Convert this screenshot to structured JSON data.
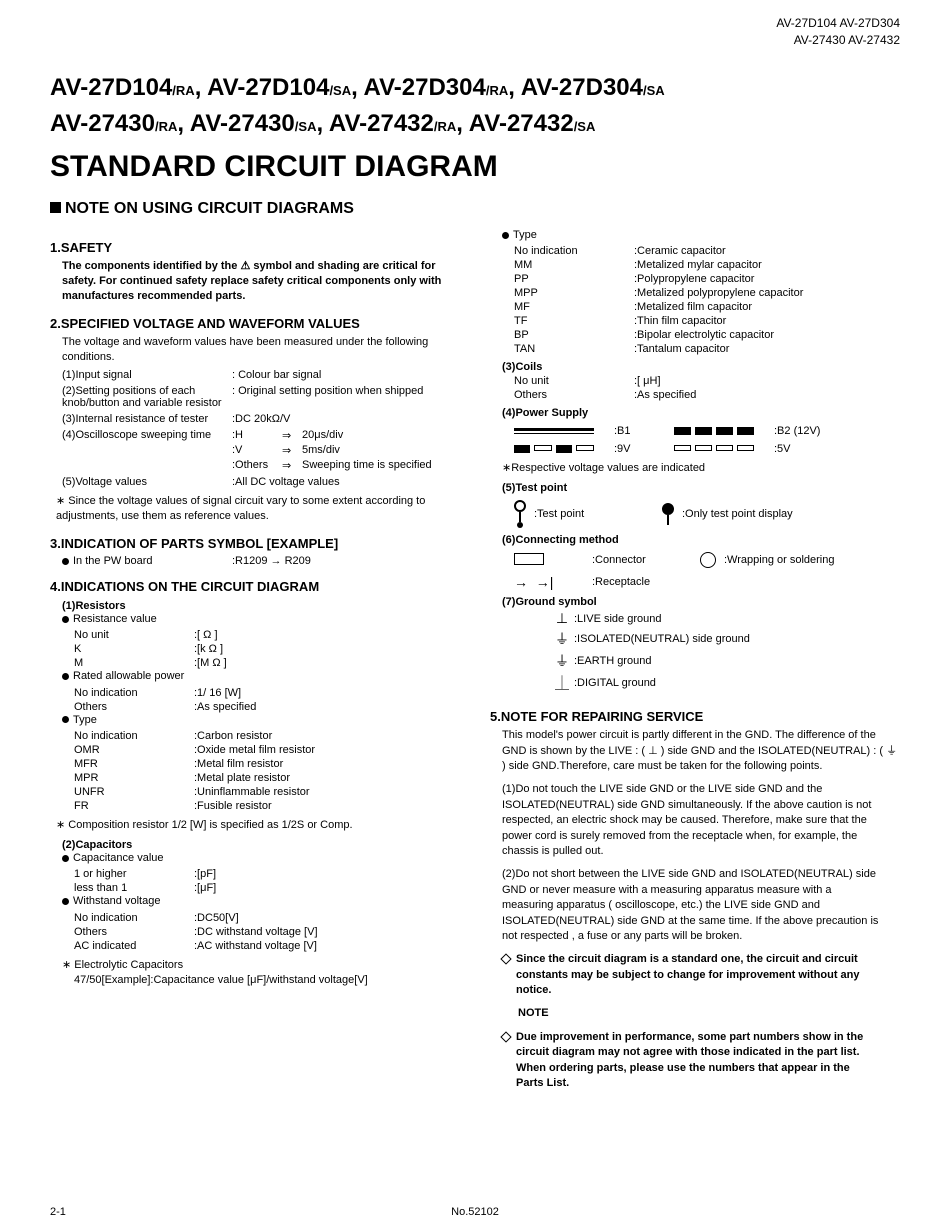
{
  "header_right_line1": "AV-27D104 AV-27D304",
  "header_right_line2": "AV-27430 AV-27432",
  "title_parts": [
    {
      "main": "AV-27D104",
      "suf": "/RA"
    },
    {
      "main": ", AV-27D104",
      "suf": "/SA"
    },
    {
      "main": ", AV-27D304",
      "suf": "/RA"
    },
    {
      "main": ", AV-27D304",
      "suf": "/SA"
    }
  ],
  "title_parts2": [
    {
      "main": "AV-27430",
      "suf": "/RA"
    },
    {
      "main": ", AV-27430",
      "suf": "/SA"
    },
    {
      "main": ", AV-27432",
      "suf": "/RA"
    },
    {
      "main": ", AV-27432",
      "suf": "/SA"
    }
  ],
  "main_title": "STANDARD CIRCUIT DIAGRAM",
  "note_head": "NOTE ON USING CIRCUIT DIAGRAMS",
  "s1_head": "1.SAFETY",
  "s1_body": "The components identified by the ⚠ symbol and shading are critical for safety. For continued safety replace safety critical components only with manufactures recommended parts.",
  "s2_head": "2.SPECIFIED VOLTAGE AND WAVEFORM VALUES",
  "s2_intro": "The voltage and waveform values have been measured under the following conditions.",
  "s2_r1_k": "(1)Input signal",
  "s2_r1_v": ": Colour bar signal",
  "s2_r2_k": "(2)Setting positions of each knob/button and variable resistor",
  "s2_r2_v": ": Original setting position when shipped",
  "s2_r3_k": "(3)Internal resistance of tester",
  "s2_r3_v": ":DC 20kΩ/V",
  "s2_r4_k": "(4)Oscilloscope sweeping time",
  "osc1_c1": ":H",
  "osc1_c2": "20μs/div",
  "osc2_c1": ":V",
  "osc2_c2": "5ms/div",
  "osc3_c1": ":Others",
  "osc3_c2": "Sweeping time is specified",
  "s2_r5_k": "(5)Voltage values",
  "s2_r5_v": ":All DC voltage values",
  "s2_note": "∗ Since the voltage values of signal circuit vary to some extent according to adjustments, use them as reference values.",
  "s3_head": "3.INDICATION OF PARTS SYMBOL [EXAMPLE]",
  "s3_body_pre": "In the PW board",
  "s3_body_post": ":R1209 → R209",
  "s4_head": "4.INDICATIONS ON THE CIRCUIT DIAGRAM",
  "s4_1": "(1)Resistors",
  "s4_rv": "Resistance value",
  "rv_r1_k": "No unit",
  "rv_r1_v": ":[ Ω ]",
  "rv_r2_k": "K",
  "rv_r2_v": ":[k Ω ]",
  "rv_r3_k": "M",
  "rv_r3_v": ":[M Ω ]",
  "s4_rap": "Rated allowable power",
  "rap_r1_k": "No indication",
  "rap_r1_v": ":1/ 16  [W]",
  "rap_r2_k": "Others",
  "rap_r2_v": ":As specified",
  "s4_type": "Type",
  "rt_r1_k": "No indication",
  "rt_r1_v": ":Carbon resistor",
  "rt_r2_k": "OMR",
  "rt_r2_v": ":Oxide metal film resistor",
  "rt_r3_k": "MFR",
  "rt_r3_v": ":Metal film resistor",
  "rt_r4_k": "MPR",
  "rt_r4_v": ":Metal plate resistor",
  "rt_r5_k": "UNFR",
  "rt_r5_v": ":Uninflammable resistor",
  "rt_r6_k": "FR",
  "rt_r6_v": ":Fusible resistor",
  "s4_comp_note": "∗ Composition resistor 1/2 [W] is specified as 1/2S or Comp.",
  "s4_2": "(2)Capacitors",
  "s4_cv": "Capacitance value",
  "cv_r1_k": "1 or higher",
  "cv_r1_v": ":[pF]",
  "cv_r2_k": "less than 1",
  "cv_r2_v": ":[μF]",
  "s4_wv": "Withstand voltage",
  "wv_r1_k": "No indication",
  "wv_r1_v": ":DC50[V]",
  "wv_r2_k": "Others",
  "wv_r2_v": ":DC withstand voltage [V]",
  "wv_r3_k": "AC indicated",
  "wv_r3_v": ":AC withstand voltage [V]",
  "s4_ec": "∗ Electrolytic Capacitors",
  "s4_ec2": "47/50[Example]:Capacitance value [μF]/withstand voltage[V]",
  "ct_r1_k": "No indication",
  "ct_r1_v": ":Ceramic capacitor",
  "ct_r2_k": "MM",
  "ct_r2_v": ":Metalized mylar capacitor",
  "ct_r3_k": "PP",
  "ct_r3_v": ":Polypropylene capacitor",
  "ct_r4_k": "MPP",
  "ct_r4_v": ":Metalized polypropylene capacitor",
  "ct_r5_k": "MF",
  "ct_r5_v": ":Metalized film capacitor",
  "ct_r6_k": "TF",
  "ct_r6_v": ":Thin film capacitor",
  "ct_r7_k": "BP",
  "ct_r7_v": ":Bipolar electrolytic capacitor",
  "ct_r8_k": "TAN",
  "ct_r8_v": ":Tantalum capacitor",
  "s4_3": "(3)Coils",
  "co_r1_k": "No unit",
  "co_r1_v": ":[ μH]",
  "co_r2_k": "Others",
  "co_r2_v": ":As specified",
  "s4_4": "(4)Power Supply",
  "ps_b1": ":B1",
  "ps_b2": ":B2 (12V)",
  "ps_9v": ":9V",
  "ps_5v": ":5V",
  "ps_note": "∗Respective voltage values are indicated",
  "s4_5": "(5)Test point",
  "tp_1": ":Test point",
  "tp_2": ":Only test point display",
  "s4_6": "(6)Connecting method",
  "cm_1": ":Connector",
  "cm_2": ":Wrapping or soldering",
  "cm_3": ":Receptacle",
  "s4_7": "(7)Ground symbol",
  "gs_1": ":LIVE side ground",
  "gs_2": ":ISOLATED(NEUTRAL) side ground",
  "gs_3": ":EARTH ground",
  "gs_4": ":DIGITAL ground",
  "s5_head": "5.NOTE FOR REPAIRING SERVICE",
  "s5_para": "This model's power circuit is partly different in the GND. The difference of the GND is shown by the LIVE : ( ⊥ ) side GND and the ISOLATED(NEUTRAL) : ( ⏚ ) side GND.Therefore, care must be taken for the following points.",
  "s5_1": "(1)Do not touch the LIVE side GND or the LIVE side GND and the ISOLATED(NEUTRAL) side GND simultaneously. If the above caution is not respected, an electric shock may be caused. Therefore, make sure that the power cord is surely removed from the receptacle when, for example, the chassis is pulled out.",
  "s5_2": "(2)Do not short between the LIVE side GND and ISOLATED(NEUTRAL) side GND or never measure with a measuring apparatus measure with a measuring apparatus ( oscilloscope, etc.) the LIVE side GND and ISOLATED(NEUTRAL) side GND at the same time. If the above precaution is not respected , a fuse or any parts will be broken.",
  "d1": "Since the circuit diagram is a standard one, the circuit and circuit constants may be subject to change for improvement without any notice.",
  "note_label": "NOTE",
  "d2": "Due improvement in performance, some part numbers show in the circuit diagram may not agree with those indicated in the part list. When ordering parts, please use the numbers that appear in the Parts List.",
  "footer_left": "2-1",
  "footer_center": "No.52102"
}
